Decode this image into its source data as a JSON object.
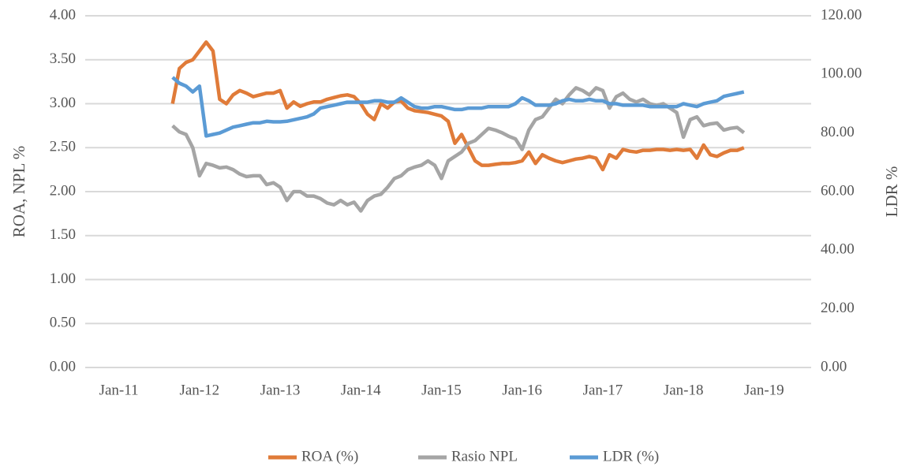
{
  "chart_data": {
    "type": "line",
    "y_label": "ROA, NPL %",
    "y2_label": "LDR %",
    "x": [
      "2011-09",
      "2011-10",
      "2011-11",
      "2011-12",
      "2012-01",
      "2012-02",
      "2012-03",
      "2012-04",
      "2012-05",
      "2012-06",
      "2012-07",
      "2012-08",
      "2012-09",
      "2012-10",
      "2012-11",
      "2012-12",
      "2013-01",
      "2013-02",
      "2013-03",
      "2013-04",
      "2013-05",
      "2013-06",
      "2013-07",
      "2013-08",
      "2013-09",
      "2013-10",
      "2013-11",
      "2013-12",
      "2014-01",
      "2014-02",
      "2014-03",
      "2014-04",
      "2014-05",
      "2014-06",
      "2014-07",
      "2014-08",
      "2014-09",
      "2014-10",
      "2014-11",
      "2014-12",
      "2015-01",
      "2015-02",
      "2015-03",
      "2015-04",
      "2015-05",
      "2015-06",
      "2015-07",
      "2015-08",
      "2015-09",
      "2015-10",
      "2015-11",
      "2015-12",
      "2016-01",
      "2016-02",
      "2016-03",
      "2016-04",
      "2016-05",
      "2016-06",
      "2016-07",
      "2016-08",
      "2016-09",
      "2016-10",
      "2016-11",
      "2016-12",
      "2017-01",
      "2017-02",
      "2017-03",
      "2017-04",
      "2017-05",
      "2017-06",
      "2017-07",
      "2017-08",
      "2017-09",
      "2017-10",
      "2017-11",
      "2017-12",
      "2018-01",
      "2018-02",
      "2018-03",
      "2018-04",
      "2018-05",
      "2018-06",
      "2018-07",
      "2018-08",
      "2018-09",
      "2018-10"
    ],
    "series": [
      {
        "name": "ROA (%)",
        "color": "#e07b39",
        "values": [
          3.0,
          3.4,
          3.47,
          3.5,
          3.6,
          3.7,
          3.6,
          3.05,
          3.0,
          3.1,
          3.15,
          3.12,
          3.08,
          3.1,
          3.12,
          3.12,
          3.15,
          2.95,
          3.02,
          2.97,
          3.0,
          3.02,
          3.02,
          3.05,
          3.07,
          3.09,
          3.1,
          3.08,
          3.0,
          2.88,
          2.82,
          3.0,
          2.95,
          3.02,
          3.03,
          2.95,
          2.92,
          2.91,
          2.9,
          2.88,
          2.86,
          2.8,
          2.55,
          2.65,
          2.5,
          2.35,
          2.3,
          2.3,
          2.31,
          2.32,
          2.32,
          2.33,
          2.35,
          2.45,
          2.32,
          2.42,
          2.38,
          2.35,
          2.33,
          2.35,
          2.37,
          2.38,
          2.4,
          2.38,
          2.25,
          2.42,
          2.38,
          2.48,
          2.46,
          2.45,
          2.47,
          2.47,
          2.48,
          2.48,
          2.47,
          2.48,
          2.47,
          2.48,
          2.38,
          2.53,
          2.42,
          2.4,
          2.44,
          2.47,
          2.47,
          2.5
        ]
      },
      {
        "name": "Rasio NPL",
        "color": "#a5a5a5",
        "values": [
          2.75,
          2.68,
          2.65,
          2.5,
          2.18,
          2.32,
          2.3,
          2.27,
          2.28,
          2.25,
          2.2,
          2.17,
          2.18,
          2.18,
          2.08,
          2.1,
          2.05,
          1.9,
          2.0,
          2.0,
          1.95,
          1.95,
          1.92,
          1.87,
          1.85,
          1.9,
          1.85,
          1.88,
          1.78,
          1.9,
          1.95,
          1.97,
          2.05,
          2.15,
          2.18,
          2.25,
          2.28,
          2.3,
          2.35,
          2.3,
          2.15,
          2.35,
          2.4,
          2.45,
          2.55,
          2.58,
          2.65,
          2.72,
          2.7,
          2.67,
          2.63,
          2.6,
          2.48,
          2.7,
          2.82,
          2.85,
          2.95,
          3.05,
          3.0,
          3.1,
          3.18,
          3.15,
          3.1,
          3.18,
          3.15,
          2.95,
          3.08,
          3.12,
          3.05,
          3.02,
          3.05,
          3.0,
          2.98,
          3.0,
          2.95,
          2.9,
          2.62,
          2.82,
          2.85,
          2.75,
          2.77,
          2.78,
          2.7,
          2.72,
          2.73,
          2.67
        ]
      },
      {
        "name": "LDR (%)",
        "color": "#5b9bd5",
        "axis": "y2",
        "values": [
          99,
          97,
          96,
          94,
          96,
          79,
          79.5,
          80,
          81,
          82,
          82.5,
          83,
          83.5,
          83.5,
          84,
          83.8,
          83.8,
          84,
          84.5,
          85,
          85.5,
          86.5,
          88.5,
          89,
          89.5,
          90,
          90.5,
          90.5,
          90.5,
          90.5,
          91,
          91,
          90.5,
          90.5,
          92,
          90.5,
          89,
          88.5,
          88.5,
          89,
          89,
          88.5,
          88,
          88,
          88.5,
          88.5,
          88.5,
          89,
          89,
          89,
          89,
          90,
          92,
          91,
          89.5,
          89.5,
          89.5,
          90,
          91,
          91.5,
          91,
          91,
          91.5,
          91,
          91,
          90,
          90,
          89.5,
          89.5,
          89.5,
          89.5,
          89,
          89,
          89,
          89,
          89,
          90,
          89.5,
          89,
          90,
          90.5,
          91,
          92.5,
          93,
          93.5,
          94
        ]
      }
    ],
    "xlim": [
      "2010-08",
      "2019-08"
    ],
    "xticks": [
      {
        "value": "2011-01",
        "label": "Jan-11"
      },
      {
        "value": "2012-01",
        "label": "Jan-12"
      },
      {
        "value": "2013-01",
        "label": "Jan-13"
      },
      {
        "value": "2014-01",
        "label": "Jan-14"
      },
      {
        "value": "2015-01",
        "label": "Jan-15"
      },
      {
        "value": "2016-01",
        "label": "Jan-16"
      },
      {
        "value": "2017-01",
        "label": "Jan-17"
      },
      {
        "value": "2018-01",
        "label": "Jan-18"
      },
      {
        "value": "2019-01",
        "label": "Jan-19"
      }
    ],
    "ylim": [
      0,
      4
    ],
    "yticks": [
      {
        "value": 0,
        "label": "0.00"
      },
      {
        "value": 0.5,
        "label": "0.50"
      },
      {
        "value": 1,
        "label": "1.00"
      },
      {
        "value": 1.5,
        "label": "1.50"
      },
      {
        "value": 2,
        "label": "2.00"
      },
      {
        "value": 2.5,
        "label": "2.50"
      },
      {
        "value": 3,
        "label": "3.00"
      },
      {
        "value": 3.5,
        "label": "3.50"
      },
      {
        "value": 4,
        "label": "4.00"
      }
    ],
    "y2lim": [
      0,
      120
    ],
    "y2ticks": [
      {
        "value": 0,
        "label": "0.00"
      },
      {
        "value": 20,
        "label": "20.00"
      },
      {
        "value": 40,
        "label": "40.00"
      },
      {
        "value": 60,
        "label": "60.00"
      },
      {
        "value": 80,
        "label": "80.00"
      },
      {
        "value": 100,
        "label": "100.00"
      },
      {
        "value": 120,
        "label": "120.00"
      }
    ],
    "grid": true,
    "legend": "bottom"
  }
}
